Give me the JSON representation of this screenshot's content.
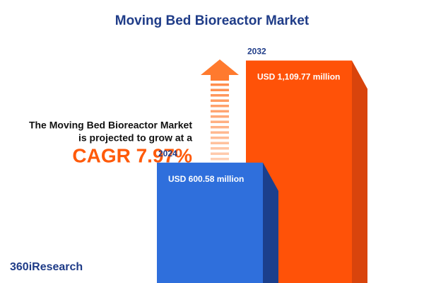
{
  "chart_data": {
    "type": "bar",
    "title": "Moving Bed Bioreactor Market",
    "description": [
      "The Moving Bed Bioreactor Market",
      "is projected to grow at a"
    ],
    "highlight": "CAGR 7.97%",
    "categories": [
      "2024",
      "2032"
    ],
    "values": [
      600.58,
      1109.77
    ],
    "value_labels": [
      "USD 600.58 million",
      "USD 1,109.77 million"
    ],
    "colors": [
      "#2f6fdc",
      "#ff5208"
    ],
    "side_colors": [
      "#1b3f8c",
      "#d9440c"
    ],
    "ylim": [
      0,
      1200
    ],
    "brand": "360iResearch"
  }
}
